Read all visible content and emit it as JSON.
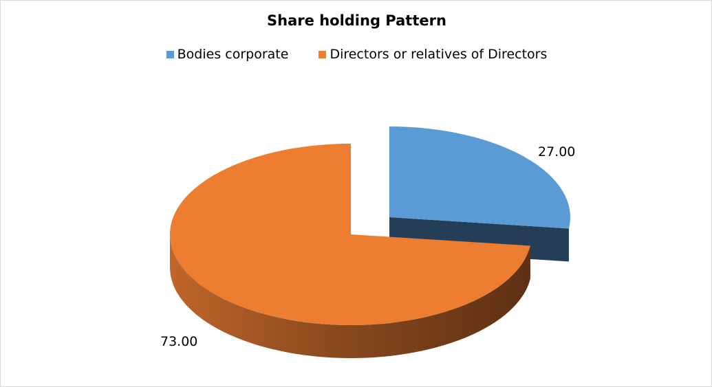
{
  "chart_data": {
    "type": "pie",
    "title": "Share holding Pattern",
    "categories": [
      "Bodies corporate",
      "Directors or relatives of Directors"
    ],
    "values": [
      27.0,
      73.0
    ],
    "data_labels": [
      "27.00",
      "73.00"
    ],
    "colors": [
      "#5b9bd5",
      "#ed7d31"
    ],
    "legend_position": "top",
    "style": "3d-exploded"
  }
}
